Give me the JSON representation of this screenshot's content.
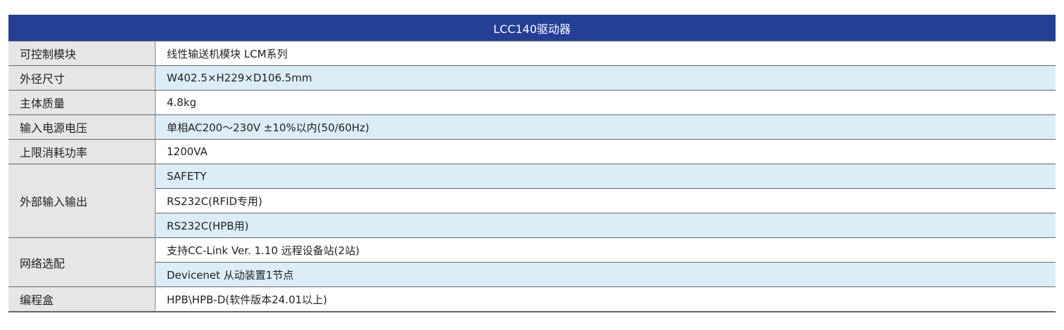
{
  "title": "LCC140驱动器",
  "colors": {
    "header_bg": "#233f96",
    "label_bg": "#e6e6e6",
    "stripe_bg": "#dbedf7"
  },
  "rows": [
    {
      "label": "可控制模块",
      "values": [
        "线性输送机模块  LCM系列"
      ]
    },
    {
      "label": "外径尺寸",
      "values": [
        "W402.5×H229×D106.5mm"
      ]
    },
    {
      "label": "主体质量",
      "values": [
        "4.8kg"
      ]
    },
    {
      "label": "输入电源电压",
      "values": [
        "单相AC200～230V  ±10%以内(50/60Hz)"
      ]
    },
    {
      "label": "上限消耗功率",
      "values": [
        "1200VA"
      ]
    },
    {
      "label": "外部输入输出",
      "values": [
        "SAFETY",
        "RS232C(RFID专用)",
        "RS232C(HPB用)"
      ]
    },
    {
      "label": "网络选配",
      "values": [
        "支持CC-Link Ver. 1.10 远程设备站(2站)",
        "Devicenet 从动装置1节点"
      ]
    },
    {
      "label": "编程盒",
      "values": [
        "HPB\\HPB-D(软件版本24.01以上)"
      ]
    }
  ]
}
